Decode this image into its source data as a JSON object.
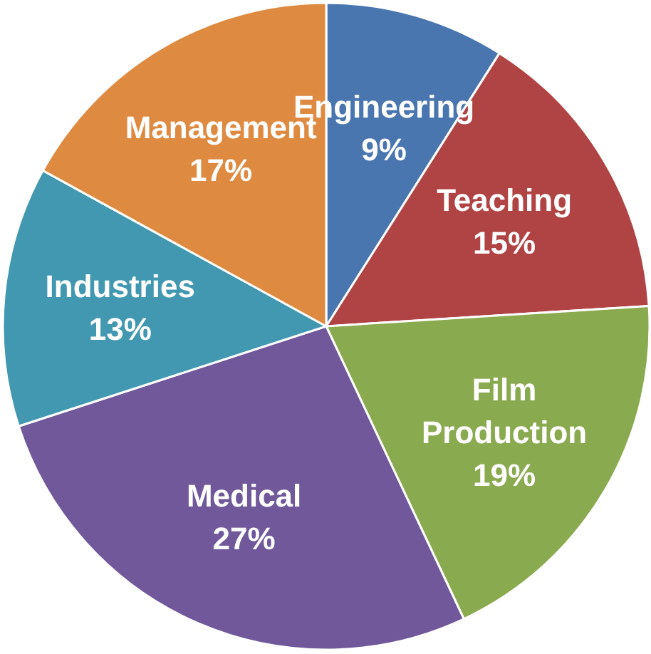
{
  "chart_data": {
    "type": "pie",
    "categories": [
      "Engineering",
      "Teaching",
      "Film Production",
      "Medical",
      "Industries",
      "Management"
    ],
    "values": [
      9,
      15,
      19,
      27,
      13,
      17
    ],
    "value_labels": [
      "9%",
      "15%",
      "19%",
      "27%",
      "13%",
      "17%"
    ],
    "colors": [
      "#4a76b0",
      "#b04444",
      "#8aaa4f",
      "#70589a",
      "#4298b0",
      "#de8a40"
    ]
  }
}
